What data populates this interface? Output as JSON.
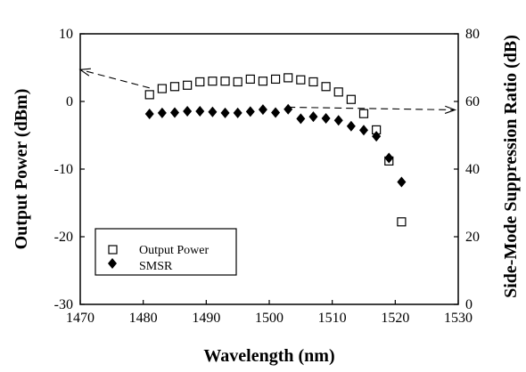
{
  "chart_data": {
    "type": "scatter",
    "title": "",
    "xlabel": "Wavelength (nm)",
    "ylabel_left": "Output Power (dBm)",
    "ylabel_right": "Side-Mode Suppression Ratio (dB)",
    "xlim": [
      1470,
      1530
    ],
    "ylim_left": [
      -30,
      10
    ],
    "ylim_right": [
      0,
      80
    ],
    "x_ticks": [
      "1470",
      "1480",
      "1490",
      "1500",
      "1510",
      "1520",
      "1530"
    ],
    "y_ticks_left": [
      "10",
      "0",
      "-10",
      "-20",
      "-30"
    ],
    "y_ticks_right": [
      "80",
      "60",
      "40",
      "20",
      "0"
    ],
    "grid": false,
    "legend_position": "bottom-left",
    "series": [
      {
        "name": "Output Power",
        "axis": "left",
        "marker": "open-square",
        "color": "#000000",
        "points": [
          [
            1481,
            1.0
          ],
          [
            1483,
            1.9
          ],
          [
            1485,
            2.2
          ],
          [
            1487,
            2.4
          ],
          [
            1489,
            2.9
          ],
          [
            1491,
            3.0
          ],
          [
            1493,
            3.0
          ],
          [
            1495,
            2.9
          ],
          [
            1497,
            3.3
          ],
          [
            1499,
            3.0
          ],
          [
            1501,
            3.3
          ],
          [
            1503,
            3.5
          ],
          [
            1505,
            3.2
          ],
          [
            1507,
            2.9
          ],
          [
            1509,
            2.2
          ],
          [
            1511,
            1.4
          ],
          [
            1513,
            0.3
          ],
          [
            1515,
            -1.8
          ],
          [
            1517,
            -4.2
          ],
          [
            1519,
            -8.8
          ],
          [
            1521,
            -17.8
          ]
        ]
      },
      {
        "name": "SMSR",
        "axis": "right",
        "marker": "filled-diamond",
        "color": "#000000",
        "points": [
          [
            1481,
            56.3
          ],
          [
            1483,
            56.6
          ],
          [
            1485,
            56.7
          ],
          [
            1487,
            57.1
          ],
          [
            1489,
            57.1
          ],
          [
            1491,
            56.9
          ],
          [
            1493,
            56.6
          ],
          [
            1495,
            56.6
          ],
          [
            1497,
            57.0
          ],
          [
            1499,
            57.6
          ],
          [
            1501,
            56.7
          ],
          [
            1503,
            57.7
          ],
          [
            1505,
            54.9
          ],
          [
            1507,
            55.5
          ],
          [
            1509,
            55.0
          ],
          [
            1511,
            54.4
          ],
          [
            1513,
            52.7
          ],
          [
            1515,
            51.5
          ],
          [
            1517,
            49.7
          ],
          [
            1519,
            43.3
          ],
          [
            1521,
            36.2
          ]
        ]
      }
    ],
    "annotations": [
      {
        "type": "dashed-arrow",
        "points": [
          [
            1481,
            2.0
          ],
          [
            1470,
            4.7
          ]
        ],
        "axis": "left",
        "meaning": "Output Power series uses the left axis"
      },
      {
        "type": "dashed-arrow",
        "points": [
          [
            1503,
            58.3
          ],
          [
            1529.5,
            57.5
          ]
        ],
        "axis": "right",
        "meaning": "SMSR series uses the right axis"
      }
    ]
  }
}
